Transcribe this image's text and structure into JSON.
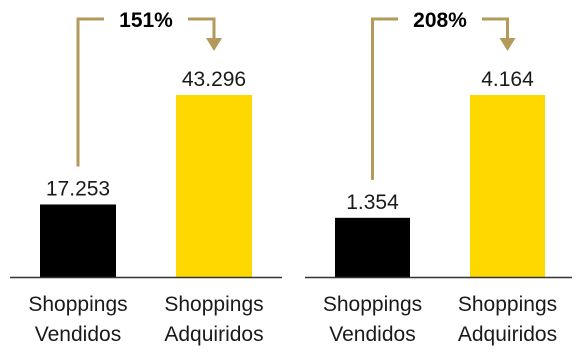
{
  "colors": {
    "sold": "#000000",
    "acquired": "#FFD800",
    "arrow": "#B39A5A",
    "axis": "#333333"
  },
  "chart_data": [
    {
      "type": "bar",
      "categories": [
        "Shoppings Vendidos",
        "Shoppings Adquiridos"
      ],
      "category_lines": [
        [
          "Shoppings",
          "Vendidos"
        ],
        [
          "Shoppings",
          "Adquiridos"
        ]
      ],
      "values": [
        17253,
        43296
      ],
      "value_labels": [
        "17.253",
        "43.296"
      ],
      "growth_label": "151%",
      "grid": false,
      "title": "",
      "xlabel": "",
      "ylabel": ""
    },
    {
      "type": "bar",
      "categories": [
        "Shoppings Vendidos",
        "Shoppings Adquiridos"
      ],
      "category_lines": [
        [
          "Shoppings",
          "Vendidos"
        ],
        [
          "Shoppings",
          "Adquiridos"
        ]
      ],
      "values": [
        1354,
        4164
      ],
      "value_labels": [
        "1.354",
        "4.164"
      ],
      "growth_label": "208%",
      "grid": false,
      "title": "",
      "xlabel": "",
      "ylabel": ""
    }
  ]
}
